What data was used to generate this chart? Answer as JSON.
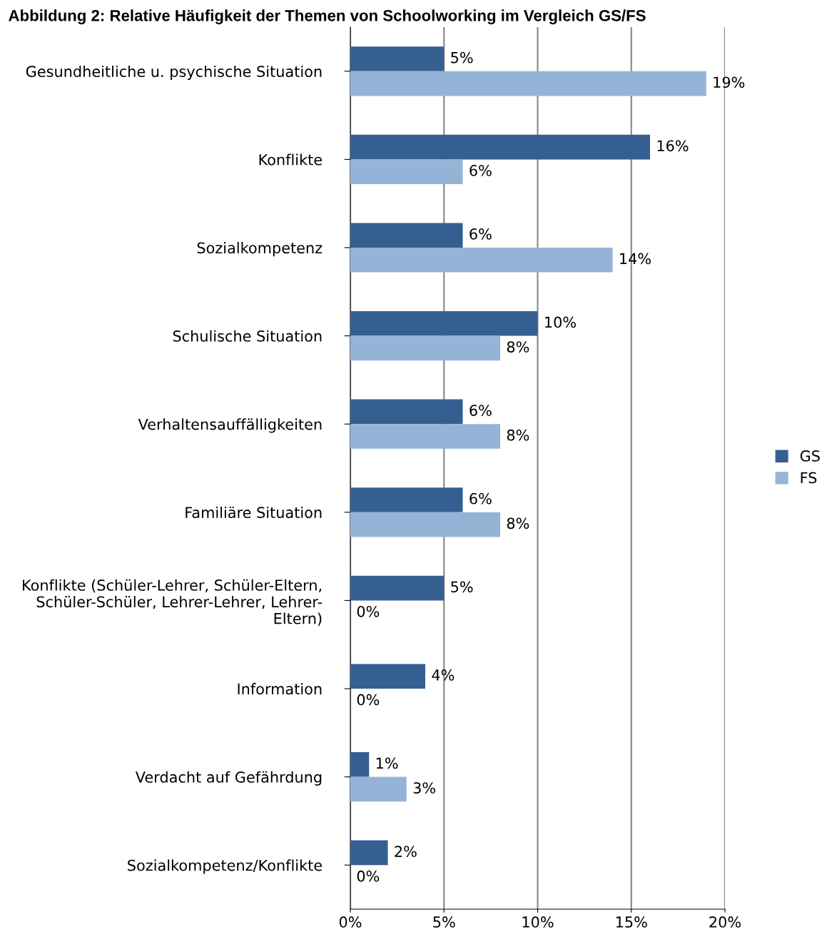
{
  "chart_data": {
    "type": "bar",
    "orientation": "horizontal",
    "title": "Abbildung 2: Relative Häufigkeit der Themen von Schoolworking im Vergleich GS/FS",
    "categories": [
      "Gesundheitliche u. psychische Situation",
      "Konflikte",
      "Sozialkompetenz",
      "Schulische Situation",
      "Verhaltensauffälligkeiten",
      "Familiäre Situation",
      "Konflikte (Schüler-Lehrer, Schüler-Eltern,\nSchüler-Schüler, Lehrer-Lehrer, Lehrer-\nEltern)",
      "Information",
      "Verdacht auf Gefährdung",
      "Sozialkompetenz/Konflikte"
    ],
    "series": [
      {
        "name": "GS",
        "color": "#355f91",
        "values": [
          5,
          16,
          6,
          10,
          6,
          6,
          5,
          4,
          1,
          2
        ],
        "value_labels": [
          "5%",
          "16%",
          "6%",
          "10%",
          "6%",
          "6%",
          "5%",
          "4%",
          "1%",
          "2%"
        ]
      },
      {
        "name": "FS",
        "color": "#95b3d7",
        "values": [
          19,
          6,
          14,
          8,
          8,
          8,
          0,
          0,
          3,
          0
        ],
        "value_labels": [
          "19%",
          "6%",
          "14%",
          "8%",
          "8%",
          "8%",
          "0%",
          "0%",
          "3%",
          "0%"
        ]
      }
    ],
    "xlim": [
      0,
      20
    ],
    "xticks": [
      {
        "value": 0,
        "label": "0%"
      },
      {
        "value": 5,
        "label": "5%"
      },
      {
        "value": 10,
        "label": "10%"
      },
      {
        "value": 15,
        "label": "15%"
      },
      {
        "value": 20,
        "label": "20%"
      }
    ],
    "grid": "x",
    "legend": "right"
  }
}
